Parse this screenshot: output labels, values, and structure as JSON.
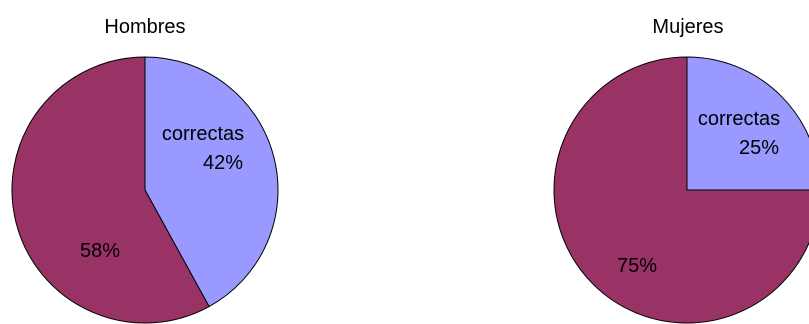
{
  "chart_data": [
    {
      "type": "pie",
      "title": "Hombres",
      "slices": [
        {
          "name": "correctas",
          "value": 42,
          "label_name": "correctas",
          "label_value": "42%",
          "color": "#9999ff"
        },
        {
          "name": "",
          "value": 58,
          "label_name": "",
          "label_value": "58%",
          "color": "#993366"
        }
      ]
    },
    {
      "type": "pie",
      "title": "Mujeres",
      "slices": [
        {
          "name": "correctas",
          "value": 25,
          "label_name": "correctas",
          "label_value": "25%",
          "color": "#9999ff"
        },
        {
          "name": "",
          "value": 75,
          "label_name": "",
          "label_value": "75%",
          "color": "#993366"
        }
      ]
    }
  ],
  "colors": {
    "slice_stroke": "#000000",
    "background": "#ffffff"
  }
}
